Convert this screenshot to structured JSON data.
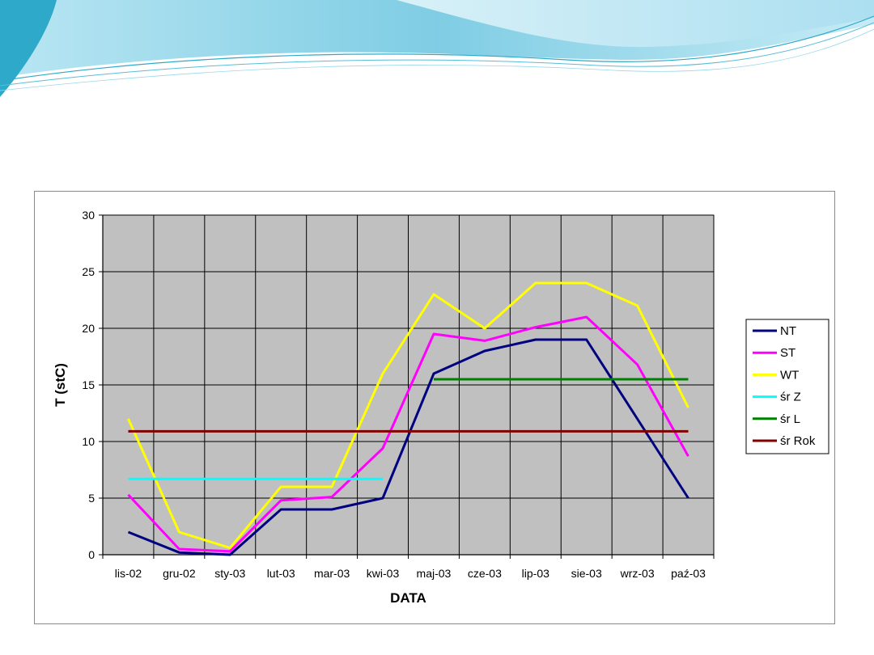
{
  "slide": {
    "header_colors": {
      "light": "#c6ebf5",
      "mid": "#7fcde4",
      "dark": "#2ea9c9"
    }
  },
  "chart_data": {
    "type": "line",
    "title": "",
    "xlabel": "DATA",
    "ylabel": "T (stC)",
    "ylim": [
      0,
      30
    ],
    "yticks": [
      0,
      5,
      10,
      15,
      20,
      25,
      30
    ],
    "grid": true,
    "plot_background": "#c0c0c0",
    "legend_position": "right",
    "categories": [
      "lis-02",
      "gru-02",
      "sty-03",
      "lut-03",
      "mar-03",
      "kwi-03",
      "maj-03",
      "cze-03",
      "lip-03",
      "sie-03",
      "wrz-03",
      "paź-03"
    ],
    "series": [
      {
        "name": "NT",
        "color": "#000080",
        "values": [
          2,
          0.2,
          0,
          4,
          4,
          5,
          16,
          18,
          19,
          19,
          12,
          5
        ]
      },
      {
        "name": "ST",
        "color": "#ff00ff",
        "values": [
          5.3,
          0.5,
          0.3,
          4.8,
          5.1,
          9.4,
          19.5,
          18.9,
          20.1,
          21,
          16.8,
          8.7
        ]
      },
      {
        "name": "WT",
        "color": "#ffff00",
        "values": [
          12,
          2,
          0.6,
          6,
          6,
          16,
          23,
          20,
          24,
          24,
          22,
          13
        ]
      },
      {
        "name": "śr Z",
        "color": "#00ffff",
        "values": [
          6.7,
          6.7,
          6.7,
          6.7,
          6.7,
          6.7,
          null,
          null,
          null,
          null,
          null,
          null
        ]
      },
      {
        "name": "śr L",
        "color": "#008000",
        "values": [
          null,
          null,
          null,
          null,
          null,
          null,
          15.5,
          15.5,
          15.5,
          15.5,
          15.5,
          15.5
        ]
      },
      {
        "name": "śr Rok",
        "color": "#800000",
        "values": [
          10.9,
          10.9,
          10.9,
          10.9,
          10.9,
          10.9,
          10.9,
          10.9,
          10.9,
          10.9,
          10.9,
          10.9
        ]
      }
    ]
  }
}
